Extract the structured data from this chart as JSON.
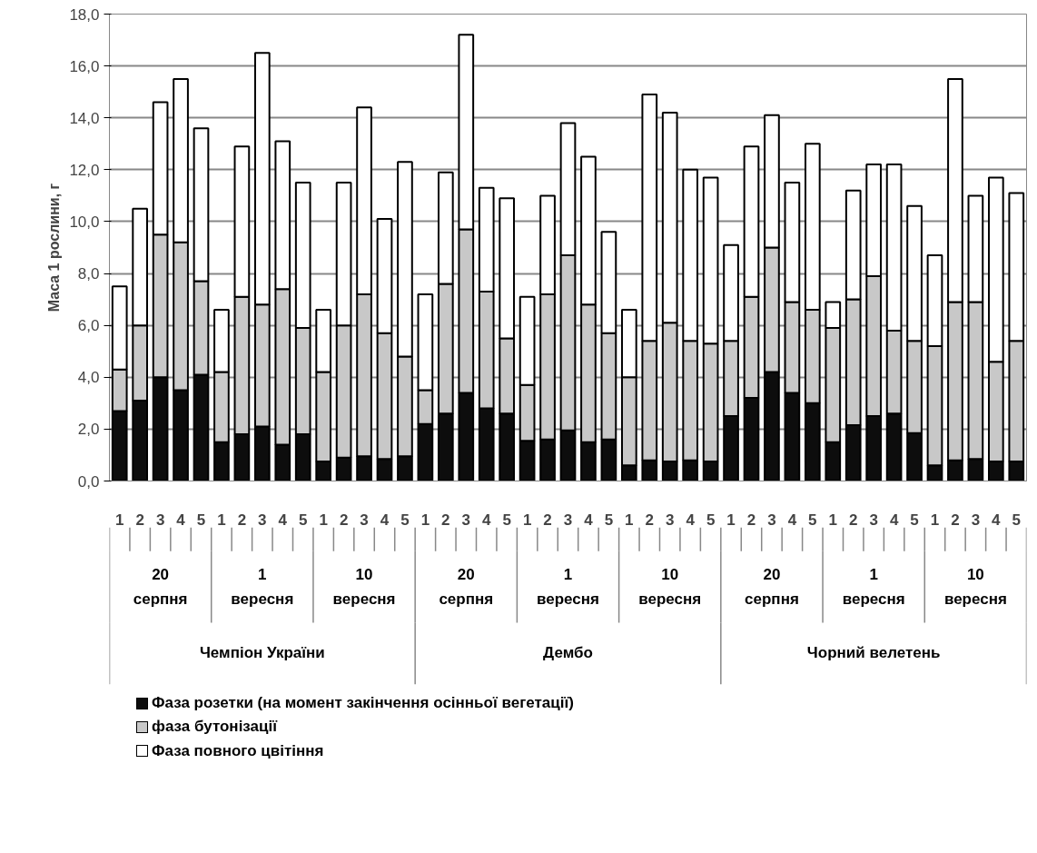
{
  "chart_data": {
    "type": "bar",
    "stacked": true,
    "ylabel": "Маса 1 рослини, г",
    "categories": [
      "1",
      "2",
      "3",
      "4",
      "5",
      "1",
      "2",
      "3",
      "4",
      "5",
      "1",
      "2",
      "3",
      "4",
      "5",
      "1",
      "2",
      "3",
      "4",
      "5",
      "1",
      "2",
      "3",
      "4",
      "5",
      "1",
      "2",
      "3",
      "4",
      "5",
      "1",
      "2",
      "3",
      "4",
      "5",
      "1",
      "2",
      "3",
      "4",
      "5",
      "1",
      "2",
      "3",
      "4",
      "5"
    ],
    "annotations": [
      "20 серпня",
      "1 вересня",
      "10 вересня",
      "20 серпня",
      "1 вересня",
      "10 вересня",
      "20 серпня",
      "1 вересня",
      "10 вересня",
      "Чемпіон України",
      "Дембо",
      "Чорний велетень"
    ],
    "series": [
      {
        "name": "Фаза розетки (на момент закінчення осінньої вегетації)",
        "color": "#0d0d0d",
        "values": [
          2.7,
          3.1,
          4.0,
          3.5,
          4.1,
          1.5,
          1.8,
          2.1,
          1.4,
          1.8,
          0.75,
          0.9,
          0.95,
          0.85,
          0.95,
          2.2,
          2.6,
          3.4,
          2.8,
          2.6,
          1.55,
          1.6,
          1.95,
          1.5,
          1.6,
          0.6,
          0.8,
          0.75,
          0.8,
          0.75,
          2.5,
          3.2,
          4.2,
          3.4,
          3.0,
          1.5,
          2.15,
          2.5,
          2.6,
          1.85,
          0.6,
          0.8,
          0.85,
          0.75,
          0.75
        ]
      },
      {
        "name": "фаза бутонізації",
        "color": "#c8c8c8",
        "values": [
          1.6,
          2.9,
          5.5,
          5.7,
          3.6,
          2.7,
          5.3,
          4.7,
          6.0,
          4.1,
          3.45,
          5.1,
          6.25,
          4.85,
          3.85,
          1.3,
          5.0,
          6.3,
          4.5,
          2.9,
          2.15,
          5.6,
          6.75,
          5.3,
          4.1,
          3.4,
          4.6,
          5.35,
          4.6,
          4.55,
          2.9,
          3.9,
          4.8,
          3.5,
          3.6,
          4.4,
          4.85,
          5.4,
          3.2,
          3.55,
          4.6,
          6.1,
          6.05,
          3.85,
          4.65
        ]
      },
      {
        "name": "Фаза повного цвітіння",
        "color": "#ffffff",
        "values": [
          3.2,
          4.5,
          5.1,
          6.3,
          5.9,
          2.4,
          5.8,
          9.7,
          5.7,
          5.6,
          2.4,
          5.5,
          7.2,
          4.4,
          7.5,
          3.7,
          4.3,
          7.5,
          4.0,
          5.4,
          3.4,
          3.8,
          5.1,
          5.7,
          3.9,
          2.6,
          9.5,
          8.1,
          6.6,
          6.4,
          3.7,
          5.8,
          5.1,
          4.6,
          6.4,
          1.0,
          4.2,
          4.3,
          6.4,
          5.2,
          3.5,
          8.6,
          4.1,
          7.1,
          5.7
        ]
      }
    ],
    "ylim": [
      0,
      18
    ],
    "yticks": [
      {
        "value": 0,
        "label": "0,0"
      },
      {
        "value": 2,
        "label": "2,0"
      },
      {
        "value": 4,
        "label": "4,0"
      },
      {
        "value": 6,
        "label": "6,0"
      },
      {
        "value": 8,
        "label": "8,0"
      },
      {
        "value": 10,
        "label": "10,0"
      },
      {
        "value": 12,
        "label": "12,0"
      },
      {
        "value": 14,
        "label": "14,0"
      },
      {
        "value": 16,
        "label": "16,0"
      },
      {
        "value": 18,
        "label": "18,0"
      }
    ],
    "grid": "y",
    "legend": "bottom"
  }
}
